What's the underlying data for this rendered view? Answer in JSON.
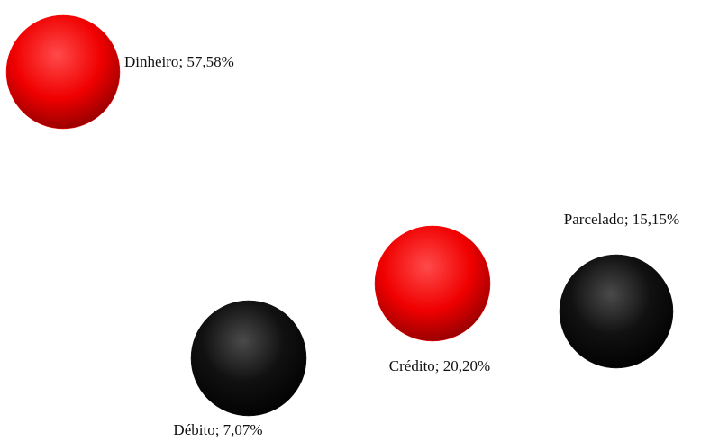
{
  "chart_data": {
    "type": "pie",
    "values": [
      57.58,
      20.2,
      15.15,
      7.07
    ],
    "value_labels": [
      "Dinheiro; 57,58%",
      "Crédito; 20,20%",
      "Parcelado; 15,15%",
      "Débito; 7,07%"
    ],
    "colors": [
      "#ff0000",
      "#ff0000",
      "#111111",
      "#111111"
    ]
  }
}
